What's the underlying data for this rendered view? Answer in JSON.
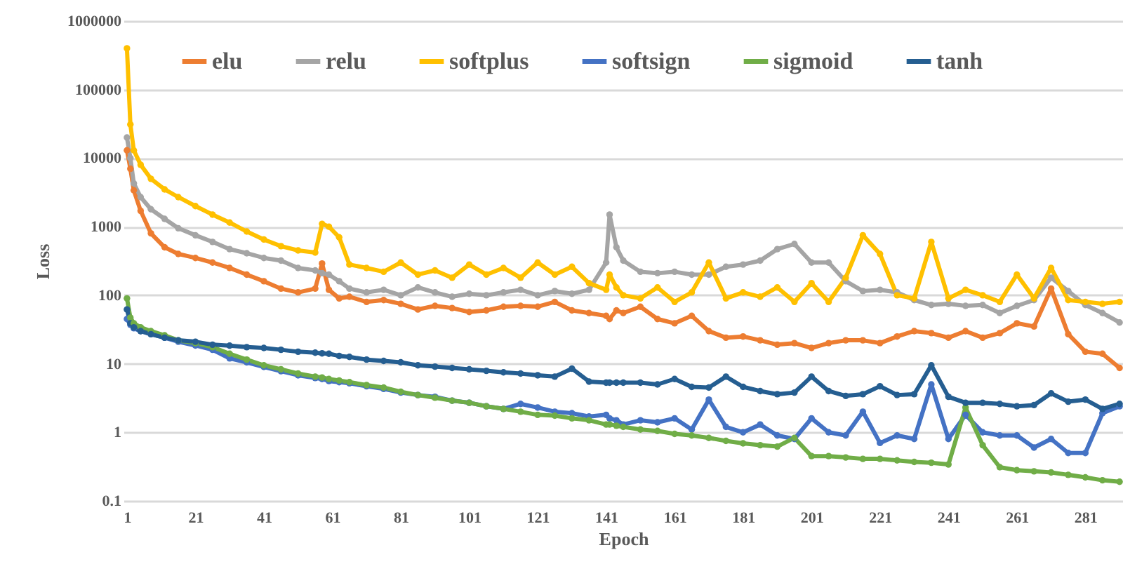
{
  "chart_data": {
    "type": "line",
    "xlabel": "Epoch",
    "ylabel": "Loss",
    "log": "y",
    "grid": "y",
    "legend": "top",
    "marker": "circle",
    "line_style": "solid",
    "xlim": [
      0,
      292
    ],
    "xticks": [
      1,
      21,
      41,
      61,
      81,
      101,
      121,
      141,
      161,
      181,
      201,
      221,
      241,
      261,
      281
    ],
    "ylim": [
      0.1,
      1000000
    ],
    "yticks": [
      0.1,
      1,
      10,
      100,
      1000,
      10000,
      100000,
      1000000
    ],
    "x": [
      1,
      2,
      3,
      5,
      8,
      12,
      16,
      21,
      26,
      31,
      36,
      41,
      46,
      51,
      56,
      58,
      60,
      63,
      66,
      71,
      76,
      81,
      86,
      91,
      96,
      101,
      106,
      111,
      116,
      121,
      126,
      131,
      136,
      141,
      142,
      144,
      146,
      151,
      156,
      161,
      166,
      171,
      176,
      181,
      186,
      191,
      196,
      201,
      206,
      211,
      216,
      221,
      226,
      231,
      236,
      241,
      246,
      251,
      256,
      261,
      266,
      271,
      276,
      281,
      286,
      291
    ],
    "series": [
      {
        "name": "elu",
        "color": "#ed7d31",
        "values": [
          13000,
          7000,
          3400,
          1700,
          800,
          500,
          400,
          350,
          300,
          250,
          200,
          160,
          125,
          110,
          125,
          290,
          120,
          90,
          95,
          80,
          85,
          75,
          62,
          70,
          65,
          57,
          60,
          68,
          70,
          68,
          80,
          60,
          55,
          50,
          45,
          60,
          55,
          68,
          45,
          39,
          50,
          30,
          24,
          25,
          22,
          19,
          20,
          17,
          20,
          22,
          22,
          20,
          25,
          30,
          28,
          24,
          30,
          24,
          28,
          39,
          35,
          125,
          27,
          15,
          14,
          8.7
        ]
      },
      {
        "name": "relu",
        "color": "#a5a5a5",
        "values": [
          20000,
          10000,
          4300,
          2700,
          1800,
          1300,
          950,
          750,
          600,
          470,
          410,
          350,
          320,
          250,
          230,
          210,
          200,
          160,
          125,
          110,
          120,
          100,
          130,
          110,
          95,
          105,
          100,
          110,
          120,
          100,
          115,
          105,
          120,
          300,
          1500,
          500,
          320,
          220,
          210,
          220,
          200,
          200,
          260,
          280,
          320,
          470,
          560,
          300,
          300,
          160,
          115,
          120,
          110,
          85,
          72,
          75,
          70,
          72,
          55,
          70,
          85,
          180,
          115,
          72,
          55,
          40
        ]
      },
      {
        "name": "softplus",
        "color": "#ffc000",
        "values": [
          400000,
          31000,
          13000,
          8000,
          5000,
          3500,
          2700,
          2000,
          1500,
          1150,
          850,
          650,
          520,
          450,
          420,
          1100,
          1000,
          700,
          280,
          250,
          220,
          300,
          200,
          230,
          180,
          280,
          200,
          250,
          180,
          300,
          200,
          260,
          150,
          120,
          200,
          130,
          100,
          90,
          130,
          80,
          110,
          300,
          90,
          110,
          95,
          130,
          80,
          150,
          80,
          180,
          750,
          400,
          100,
          90,
          600,
          90,
          120,
          100,
          80,
          200,
          90,
          250,
          85,
          80,
          75,
          80
        ]
      },
      {
        "name": "softsign",
        "color": "#4472c4",
        "values": [
          45,
          37,
          33,
          30,
          27,
          24,
          21,
          18.5,
          16,
          12,
          10.5,
          9,
          7.8,
          6.8,
          6.2,
          6,
          5.6,
          5.4,
          5.2,
          4.7,
          4.3,
          3.8,
          3.5,
          3.3,
          2.9,
          2.7,
          2.4,
          2.2,
          2.6,
          2.3,
          2,
          1.9,
          1.7,
          1.8,
          1.6,
          1.5,
          1.3,
          1.5,
          1.4,
          1.6,
          1.1,
          3,
          1.2,
          1,
          1.3,
          0.9,
          0.8,
          1.6,
          1,
          0.9,
          2,
          0.7,
          0.9,
          0.8,
          5,
          0.8,
          1.8,
          1,
          0.9,
          0.9,
          0.6,
          0.8,
          0.5,
          0.5,
          1.9,
          2.4
        ]
      },
      {
        "name": "sigmoid",
        "color": "#70ad47",
        "values": [
          90,
          47,
          39,
          34,
          30,
          26,
          22,
          20,
          17.5,
          14,
          11.5,
          9.5,
          8.3,
          7.2,
          6.5,
          6.3,
          6,
          5.7,
          5.4,
          4.9,
          4.5,
          3.9,
          3.5,
          3.2,
          2.9,
          2.7,
          2.4,
          2.2,
          2,
          1.8,
          1.75,
          1.6,
          1.5,
          1.3,
          1.3,
          1.25,
          1.2,
          1.1,
          1.05,
          0.95,
          0.9,
          0.83,
          0.75,
          0.69,
          0.65,
          0.62,
          0.83,
          0.45,
          0.45,
          0.43,
          0.41,
          0.41,
          0.39,
          0.37,
          0.36,
          0.34,
          2.3,
          0.65,
          0.31,
          0.28,
          0.27,
          0.26,
          0.24,
          0.22,
          0.2,
          0.19
        ]
      },
      {
        "name": "tanh",
        "color": "#255e91",
        "values": [
          62,
          39,
          34,
          30,
          27,
          24,
          22,
          21,
          19,
          18.4,
          17.5,
          17,
          16,
          15,
          14.5,
          14.2,
          14,
          13,
          12.6,
          11.5,
          11,
          10.5,
          9.5,
          9.1,
          8.7,
          8.3,
          7.9,
          7.5,
          7.2,
          6.8,
          6.5,
          8.5,
          5.5,
          5.3,
          5.3,
          5.3,
          5.3,
          5.3,
          5,
          6,
          4.6,
          4.5,
          6.5,
          4.6,
          4,
          3.6,
          3.8,
          6.5,
          4,
          3.4,
          3.6,
          4.7,
          3.5,
          3.6,
          9.5,
          3.3,
          2.7,
          2.7,
          2.6,
          2.4,
          2.5,
          3.7,
          2.8,
          3,
          2.2,
          2.6
        ]
      }
    ]
  }
}
